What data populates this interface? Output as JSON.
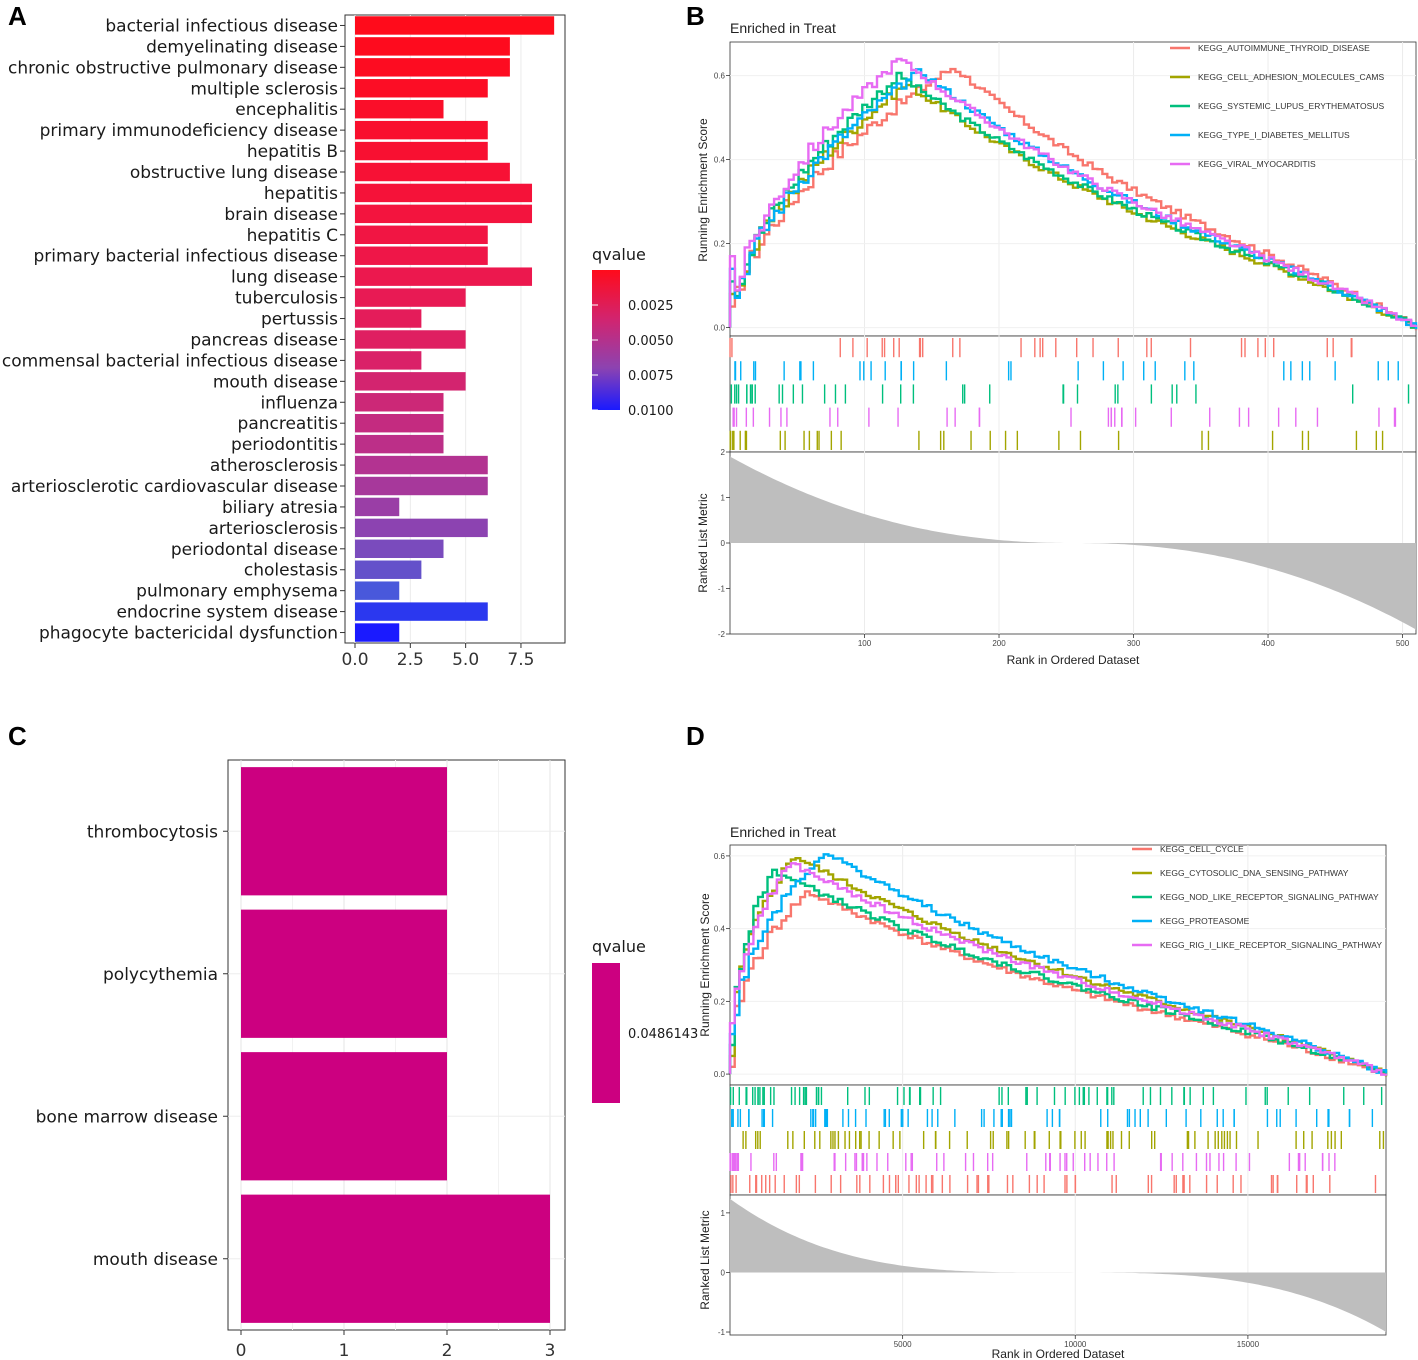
{
  "panels": {
    "a": "A",
    "b": "B",
    "c": "C",
    "d": "D"
  },
  "chart_data": [
    {
      "id": "A",
      "type": "bar",
      "orientation": "horizontal",
      "categories": [
        "bacterial infectious disease",
        "demyelinating disease",
        "chronic obstructive pulmonary disease",
        "multiple sclerosis",
        "encephalitis",
        "primary immunodeficiency disease",
        "hepatitis B",
        "obstructive lung disease",
        "hepatitis",
        "brain disease",
        "hepatitis C",
        "primary bacterial infectious disease",
        "lung disease",
        "tuberculosis",
        "pertussis",
        "pancreas disease",
        "commensal bacterial infectious disease",
        "mouth disease",
        "influenza",
        "pancreatitis",
        "periodontitis",
        "atherosclerosis",
        "arteriosclerotic cardiovascular disease",
        "biliary atresia",
        "arteriosclerosis",
        "periodontal disease",
        "cholestasis",
        "pulmonary emphysema",
        "endocrine system disease",
        "phagocyte bactericidal dysfunction"
      ],
      "values": [
        9,
        7,
        7,
        6,
        4,
        6,
        6,
        7,
        8,
        8,
        6,
        6,
        8,
        5,
        3,
        5,
        3,
        5,
        4,
        4,
        4,
        6,
        6,
        2,
        6,
        4,
        3,
        2,
        6,
        2
      ],
      "colors": [
        "#ff0b1b",
        "#fe0b1e",
        "#fd0c21",
        "#fc0d25",
        "#fa0e29",
        "#f90f2d",
        "#f81031",
        "#f71135",
        "#f51239",
        "#f3143e",
        "#f11543",
        "#ef1648",
        "#ec184e",
        "#e81a54",
        "#e41c5a",
        "#df1f61",
        "#da2168",
        "#d3246f",
        "#cc2877",
        "#c42b80",
        "#bc2f88",
        "#b33391",
        "#a7389b",
        "#9a3ea6",
        "#8c43b1",
        "#7a4bbd",
        "#6451ca",
        "#4958db",
        "#2b38ef",
        "#1a1aff"
      ],
      "xticks": [
        "0.0",
        "2.5",
        "5.0",
        "7.5"
      ],
      "xlim": [
        0,
        9.4
      ],
      "legend": {
        "title": "qvalue",
        "ticks": [
          "0.0025",
          "0.0050",
          "0.0075",
          "0.0100"
        ],
        "colors": [
          "#ff0b1b",
          "#d2246f",
          "#8c43b1",
          "#1a1aff"
        ]
      }
    },
    {
      "id": "B",
      "type": "line",
      "title": "Enriched in Treat",
      "ylabel": "Running Enrichment Score",
      "ylabel2": "Ranked List Metric",
      "xlabel": "Rank in Ordered Dataset",
      "xlim": [
        0,
        510
      ],
      "xticks": [
        "100",
        "200",
        "300",
        "400",
        "500"
      ],
      "ylim": [
        -0.02,
        0.68
      ],
      "yticks": [
        "0.0",
        "0.2",
        "0.4",
        "0.6"
      ],
      "metric_yticks": [
        "2",
        "1",
        "0",
        "-1",
        "-2"
      ],
      "metric_range": [
        2,
        -2
      ],
      "series": [
        {
          "name": "KEGG_AUTOIMMUNE_THYROID_DISEASE",
          "color": "#f8766d",
          "peak": 0.62,
          "peak_x": 165
        },
        {
          "name": "KEGG_CELL_ADHESION_MOLECULES_CAMS",
          "color": "#a3a500",
          "peak": 0.58,
          "peak_x": 130
        },
        {
          "name": "KEGG_SYSTEMIC_LUPUS_ERYTHEMATOSUS",
          "color": "#00bf7d",
          "peak": 0.6,
          "peak_x": 125
        },
        {
          "name": "KEGG_TYPE_I_DIABETES_MELLITUS",
          "color": "#00b0f6",
          "peak": 0.61,
          "peak_x": 140
        },
        {
          "name": "KEGG_VIRAL_MYOCARDITIS",
          "color": "#e76bf3",
          "peak": 0.64,
          "peak_x": 125
        }
      ]
    },
    {
      "id": "C",
      "type": "bar",
      "orientation": "horizontal",
      "categories": [
        "thrombocytosis",
        "polycythemia",
        "bone marrow disease",
        "mouth disease"
      ],
      "values": [
        2,
        2,
        2,
        3
      ],
      "color": "#cc0080",
      "xticks": [
        "0",
        "1",
        "2",
        "3"
      ],
      "xlim": [
        0,
        3.15
      ],
      "legend": {
        "title": "qvalue",
        "ticks": [
          "0.0486143"
        ],
        "colors": [
          "#cc0080"
        ]
      }
    },
    {
      "id": "D",
      "type": "line",
      "title": "Enriched in Treat",
      "ylabel": "Running Enrichment Score",
      "ylabel2": "Ranked List Metric",
      "xlabel": "Rank in Ordered Dataset",
      "xlim": [
        0,
        19000
      ],
      "xticks": [
        "5000",
        "10000",
        "15000"
      ],
      "ylim": [
        -0.03,
        0.63
      ],
      "yticks": [
        "0.0",
        "0.2",
        "0.4",
        "0.6"
      ],
      "metric_yticks": [
        "1",
        "0",
        "-1"
      ],
      "metric_range": [
        1.3,
        -1.05
      ],
      "series": [
        {
          "name": "KEGG_CELL_CYCLE",
          "color": "#f8766d",
          "peak": 0.5,
          "peak_x": 2200
        },
        {
          "name": "KEGG_CYTOSOLIC_DNA_SENSING_PATHWAY",
          "color": "#a3a500",
          "peak": 0.6,
          "peak_x": 1800
        },
        {
          "name": "KEGG_NOD_LIKE_RECEPTOR_SIGNALING_PATHWAY",
          "color": "#00bf7d",
          "peak": 0.56,
          "peak_x": 1200
        },
        {
          "name": "KEGG_PROTEASOME",
          "color": "#00b0f6",
          "peak": 0.61,
          "peak_x": 2700
        },
        {
          "name": "KEGG_RIG_I_LIKE_RECEPTOR_SIGNALING_PATHWAY",
          "color": "#e76bf3",
          "peak": 0.58,
          "peak_x": 1700
        }
      ]
    }
  ]
}
